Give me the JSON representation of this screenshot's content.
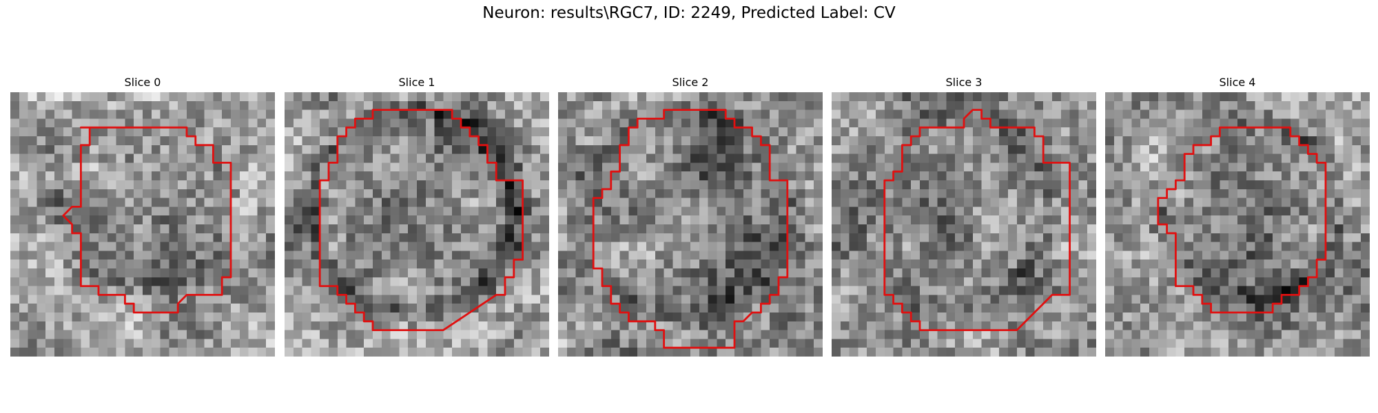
{
  "figure": {
    "title": "Neuron: results\\RGC7, ID: 2249, Predicted Label: CV"
  },
  "panels": [
    {
      "title": "Slice 0"
    },
    {
      "title": "Slice 1"
    },
    {
      "title": "Slice 2"
    },
    {
      "title": "Slice 3"
    },
    {
      "title": "Slice 4"
    }
  ],
  "colors": {
    "contour": "#e01010",
    "background": "#ffffff"
  }
}
